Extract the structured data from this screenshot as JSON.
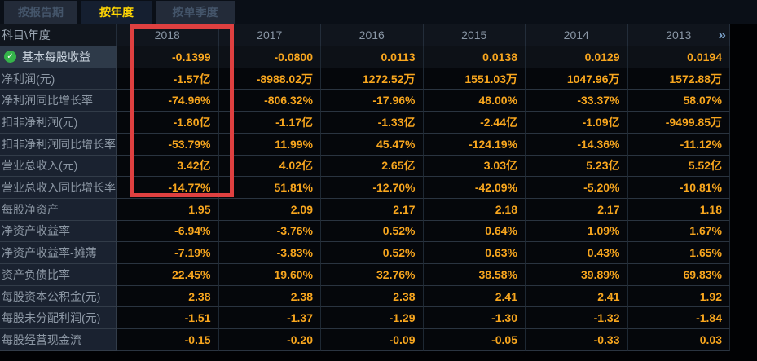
{
  "tabs": [
    {
      "label": "按报告期",
      "selected": false
    },
    {
      "label": "按年度",
      "selected": true
    },
    {
      "label": "按单季度",
      "selected": false
    }
  ],
  "table": {
    "corner_header": "科目\\年度",
    "years": [
      "2018",
      "2017",
      "2016",
      "2015",
      "2014",
      "2013"
    ],
    "more_icon": "»",
    "rows": [
      {
        "label": "基本每股收益",
        "checked": true,
        "values": [
          "-0.1399",
          "-0.0800",
          "0.0113",
          "0.0138",
          "0.0129",
          "0.0194"
        ]
      },
      {
        "label": "净利润(元)",
        "checked": false,
        "values": [
          "-1.57亿",
          "-8988.02万",
          "1272.52万",
          "1551.03万",
          "1047.96万",
          "1572.88万"
        ]
      },
      {
        "label": "净利润同比增长率",
        "checked": false,
        "values": [
          "-74.96%",
          "-806.32%",
          "-17.96%",
          "48.00%",
          "-33.37%",
          "58.07%"
        ]
      },
      {
        "label": "扣非净利润(元)",
        "checked": false,
        "values": [
          "-1.80亿",
          "-1.17亿",
          "-1.33亿",
          "-2.44亿",
          "-1.09亿",
          "-9499.85万"
        ]
      },
      {
        "label": "扣非净利润同比增长率",
        "checked": false,
        "values": [
          "-53.79%",
          "11.99%",
          "45.47%",
          "-124.19%",
          "-14.36%",
          "-11.12%"
        ]
      },
      {
        "label": "营业总收入(元)",
        "checked": false,
        "values": [
          "3.42亿",
          "4.02亿",
          "2.65亿",
          "3.03亿",
          "5.23亿",
          "5.52亿"
        ]
      },
      {
        "label": "营业总收入同比增长率",
        "checked": false,
        "values": [
          "-14.77%",
          "51.81%",
          "-12.70%",
          "-42.09%",
          "-5.20%",
          "-10.81%"
        ]
      },
      {
        "label": "每股净资产",
        "checked": false,
        "values": [
          "1.95",
          "2.09",
          "2.17",
          "2.18",
          "2.17",
          "1.18"
        ]
      },
      {
        "label": "净资产收益率",
        "checked": false,
        "values": [
          "-6.94%",
          "-3.76%",
          "0.52%",
          "0.64%",
          "1.09%",
          "1.67%"
        ]
      },
      {
        "label": "净资产收益率-摊薄",
        "checked": false,
        "values": [
          "-7.19%",
          "-3.83%",
          "0.52%",
          "0.63%",
          "0.43%",
          "1.65%"
        ]
      },
      {
        "label": "资产负债比率",
        "checked": false,
        "values": [
          "22.45%",
          "19.60%",
          "32.76%",
          "38.58%",
          "39.89%",
          "69.83%"
        ]
      },
      {
        "label": "每股资本公积金(元)",
        "checked": false,
        "values": [
          "2.38",
          "2.38",
          "2.38",
          "2.41",
          "2.41",
          "1.92"
        ]
      },
      {
        "label": "每股未分配利润(元)",
        "checked": false,
        "values": [
          "-1.51",
          "-1.37",
          "-1.29",
          "-1.30",
          "-1.32",
          "-1.84"
        ]
      },
      {
        "label": "每股经营现金流",
        "checked": false,
        "values": [
          "-0.15",
          "-0.20",
          "-0.09",
          "-0.05",
          "-0.33",
          "0.03"
        ]
      }
    ]
  },
  "highlight": {
    "target_column": "2018",
    "color": "#df4040"
  },
  "colors": {
    "value_text": "#f8a61e",
    "tab_active_text": "#ffd503",
    "check_green": "#35b44a"
  }
}
